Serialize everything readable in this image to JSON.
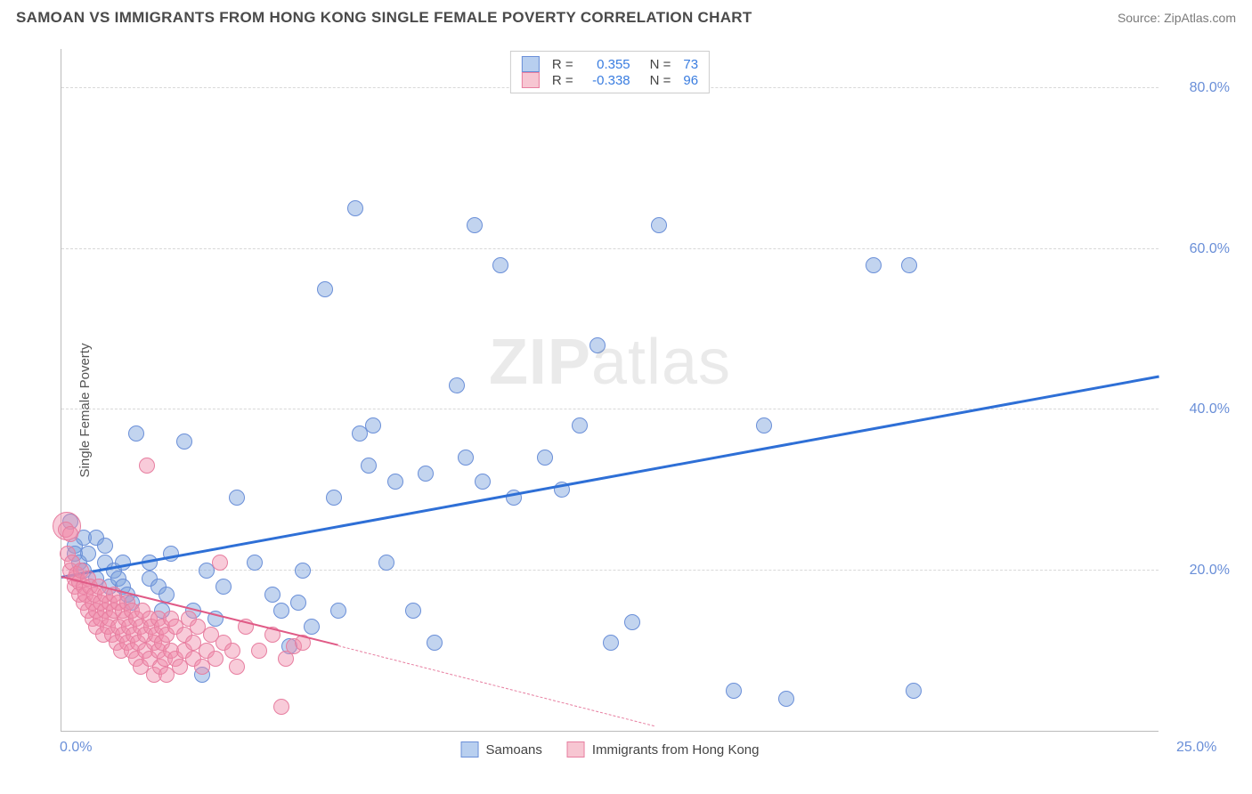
{
  "header": {
    "title": "SAMOAN VS IMMIGRANTS FROM HONG KONG SINGLE FEMALE POVERTY CORRELATION CHART",
    "source": "Source: ZipAtlas.com"
  },
  "chart": {
    "ylabel": "Single Female Poverty",
    "watermark_bold": "ZIP",
    "watermark_light": "atlas",
    "xlim": [
      0,
      25
    ],
    "ylim": [
      0,
      85
    ],
    "yticks": [
      {
        "v": 20,
        "label": "20.0%"
      },
      {
        "v": 40,
        "label": "40.0%"
      },
      {
        "v": 60,
        "label": "60.0%"
      },
      {
        "v": 80,
        "label": "80.0%"
      }
    ],
    "xticks": {
      "left": "0.0%",
      "right": "25.0%"
    },
    "legend_top": [
      {
        "swatch_fill": "#b8cfef",
        "swatch_border": "#6a8fd8",
        "r": "0.355",
        "n": "73"
      },
      {
        "swatch_fill": "#f7c6d2",
        "swatch_border": "#e77ea0",
        "r": "-0.338",
        "n": "96"
      }
    ],
    "legend_bottom": [
      {
        "swatch_fill": "#b8cfef",
        "swatch_border": "#6a8fd8",
        "label": "Samoans"
      },
      {
        "swatch_fill": "#f7c6d2",
        "swatch_border": "#e77ea0",
        "label": "Immigrants from Hong Kong"
      }
    ],
    "series": [
      {
        "name": "samoans",
        "fill": "rgba(120,160,220,0.45)",
        "stroke": "#6a8fd8",
        "radius": 9,
        "trend": {
          "x1": 0,
          "y1": 19,
          "x2": 25,
          "y2": 44,
          "color": "#2e6fd6",
          "width": 2.5,
          "dashed": false
        },
        "points": [
          [
            0.2,
            26
          ],
          [
            0.3,
            23
          ],
          [
            0.3,
            22
          ],
          [
            0.4,
            21
          ],
          [
            0.5,
            24
          ],
          [
            0.5,
            20
          ],
          [
            0.6,
            22
          ],
          [
            0.8,
            24
          ],
          [
            0.8,
            19
          ],
          [
            1.0,
            23
          ],
          [
            1.0,
            21
          ],
          [
            1.1,
            18
          ],
          [
            1.2,
            20
          ],
          [
            1.3,
            19
          ],
          [
            1.4,
            21
          ],
          [
            1.4,
            18
          ],
          [
            1.5,
            17
          ],
          [
            1.6,
            16
          ],
          [
            1.7,
            37
          ],
          [
            2.0,
            19
          ],
          [
            2.0,
            21
          ],
          [
            2.2,
            18
          ],
          [
            2.3,
            15
          ],
          [
            2.4,
            17
          ],
          [
            2.5,
            22
          ],
          [
            2.8,
            36
          ],
          [
            3.0,
            15
          ],
          [
            3.2,
            7
          ],
          [
            3.3,
            20
          ],
          [
            3.5,
            14
          ],
          [
            3.7,
            18
          ],
          [
            4.0,
            29
          ],
          [
            4.4,
            21
          ],
          [
            4.8,
            17
          ],
          [
            5.0,
            15
          ],
          [
            5.2,
            10.5
          ],
          [
            5.4,
            16
          ],
          [
            5.5,
            20
          ],
          [
            5.7,
            13
          ],
          [
            6.0,
            55
          ],
          [
            6.2,
            29
          ],
          [
            6.3,
            15
          ],
          [
            6.7,
            65
          ],
          [
            6.8,
            37
          ],
          [
            7.0,
            33
          ],
          [
            7.1,
            38
          ],
          [
            7.4,
            21
          ],
          [
            7.6,
            31
          ],
          [
            8.0,
            15
          ],
          [
            8.3,
            32
          ],
          [
            8.5,
            11
          ],
          [
            9.0,
            43
          ],
          [
            9.2,
            34
          ],
          [
            9.4,
            63
          ],
          [
            9.6,
            31
          ],
          [
            10.0,
            58
          ],
          [
            10.3,
            29
          ],
          [
            11.0,
            34
          ],
          [
            11.4,
            30
          ],
          [
            11.8,
            38
          ],
          [
            12.2,
            48
          ],
          [
            12.5,
            11
          ],
          [
            13.0,
            13.5
          ],
          [
            13.6,
            63
          ],
          [
            15.3,
            5
          ],
          [
            16.5,
            4
          ],
          [
            18.5,
            58
          ],
          [
            19.3,
            58
          ],
          [
            19.4,
            5
          ],
          [
            16.0,
            38
          ]
        ]
      },
      {
        "name": "hongkong",
        "fill": "rgba(240,140,170,0.45)",
        "stroke": "#e77ea0",
        "radius": 9,
        "trend_solid": {
          "x1": 0,
          "y1": 19,
          "x2": 6.3,
          "y2": 10.5,
          "color": "#e05a86",
          "width": 2.2
        },
        "trend_dashed": {
          "x1": 6.3,
          "y1": 10.5,
          "x2": 13.5,
          "y2": 0.5,
          "color": "#e77ea0"
        },
        "points": [
          [
            0.1,
            25
          ],
          [
            0.2,
            24.5
          ],
          [
            0.15,
            22
          ],
          [
            0.2,
            20
          ],
          [
            0.25,
            21
          ],
          [
            0.3,
            19
          ],
          [
            0.3,
            18
          ],
          [
            0.35,
            19.5
          ],
          [
            0.4,
            18.5
          ],
          [
            0.4,
            17
          ],
          [
            0.45,
            20
          ],
          [
            0.5,
            18
          ],
          [
            0.5,
            16
          ],
          [
            0.55,
            17
          ],
          [
            0.6,
            19
          ],
          [
            0.6,
            15
          ],
          [
            0.65,
            18
          ],
          [
            0.7,
            16
          ],
          [
            0.7,
            14
          ],
          [
            0.75,
            17
          ],
          [
            0.8,
            15
          ],
          [
            0.8,
            13
          ],
          [
            0.85,
            18
          ],
          [
            0.9,
            16
          ],
          [
            0.9,
            14
          ],
          [
            0.95,
            12
          ],
          [
            1.0,
            17
          ],
          [
            1.0,
            15
          ],
          [
            1.05,
            13
          ],
          [
            1.1,
            16
          ],
          [
            1.1,
            14
          ],
          [
            1.15,
            12
          ],
          [
            1.2,
            17
          ],
          [
            1.2,
            15
          ],
          [
            1.25,
            11
          ],
          [
            1.3,
            16
          ],
          [
            1.3,
            13
          ],
          [
            1.35,
            10
          ],
          [
            1.4,
            15
          ],
          [
            1.4,
            12
          ],
          [
            1.45,
            14
          ],
          [
            1.5,
            16
          ],
          [
            1.5,
            11
          ],
          [
            1.55,
            13
          ],
          [
            1.6,
            10
          ],
          [
            1.6,
            15
          ],
          [
            1.65,
            12
          ],
          [
            1.7,
            9
          ],
          [
            1.7,
            14
          ],
          [
            1.75,
            11
          ],
          [
            1.8,
            13
          ],
          [
            1.8,
            8
          ],
          [
            1.85,
            15
          ],
          [
            1.9,
            12
          ],
          [
            1.9,
            10
          ],
          [
            1.95,
            33
          ],
          [
            2.0,
            14
          ],
          [
            2.0,
            9
          ],
          [
            2.05,
            13
          ],
          [
            2.1,
            11
          ],
          [
            2.1,
            7
          ],
          [
            2.15,
            12
          ],
          [
            2.2,
            10
          ],
          [
            2.2,
            14
          ],
          [
            2.25,
            8
          ],
          [
            2.3,
            13
          ],
          [
            2.3,
            11
          ],
          [
            2.35,
            9
          ],
          [
            2.4,
            12
          ],
          [
            2.4,
            7
          ],
          [
            2.5,
            10
          ],
          [
            2.5,
            14
          ],
          [
            2.6,
            9
          ],
          [
            2.6,
            13
          ],
          [
            2.7,
            8
          ],
          [
            2.8,
            12
          ],
          [
            2.8,
            10
          ],
          [
            2.9,
            14
          ],
          [
            3.0,
            9
          ],
          [
            3.0,
            11
          ],
          [
            3.1,
            13
          ],
          [
            3.2,
            8
          ],
          [
            3.3,
            10
          ],
          [
            3.4,
            12
          ],
          [
            3.5,
            9
          ],
          [
            3.6,
            21
          ],
          [
            3.7,
            11
          ],
          [
            3.9,
            10
          ],
          [
            4.0,
            8
          ],
          [
            4.2,
            13
          ],
          [
            4.5,
            10
          ],
          [
            4.8,
            12
          ],
          [
            5.0,
            3
          ],
          [
            5.1,
            9
          ],
          [
            5.3,
            10.5
          ],
          [
            5.5,
            11
          ]
        ],
        "big_point": {
          "x": 0.12,
          "y": 25.5,
          "r": 16
        }
      }
    ]
  }
}
